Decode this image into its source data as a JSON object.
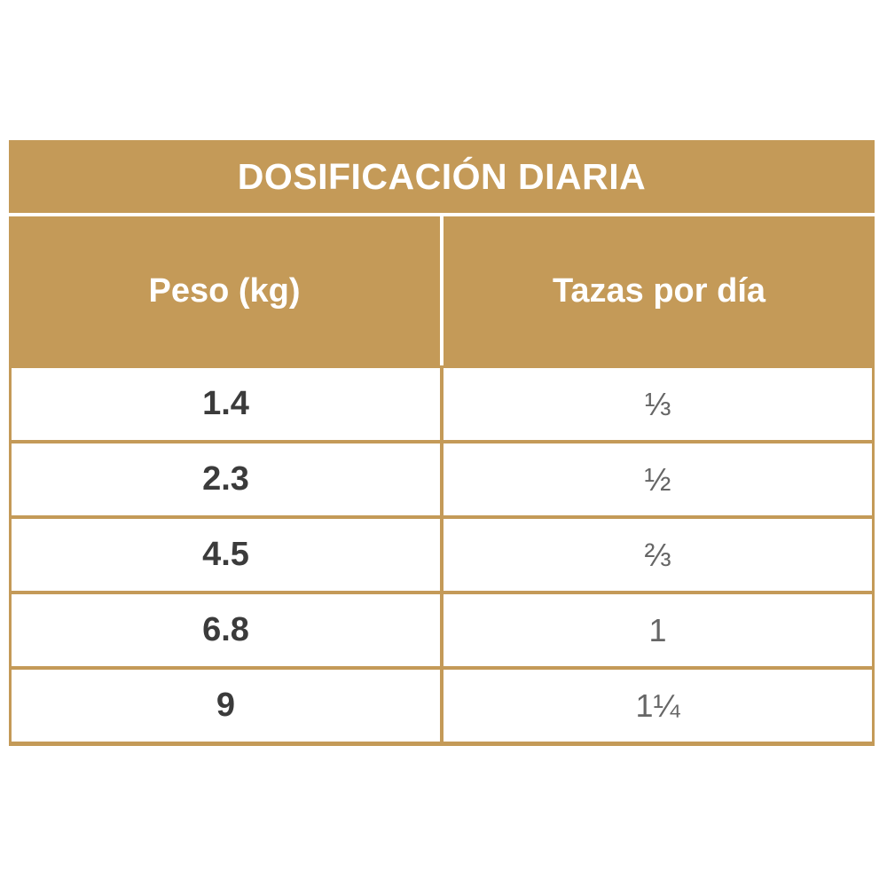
{
  "table": {
    "title": "DOSIFICACIÓN DIARIA",
    "headers": {
      "weight": "Peso (kg)",
      "cups": "Tazas por día"
    },
    "rows": [
      {
        "weight": "1.4",
        "cups": "⅓"
      },
      {
        "weight": "2.3",
        "cups": "½"
      },
      {
        "weight": "4.5",
        "cups": "⅔"
      },
      {
        "weight": "6.8",
        "cups": "1"
      },
      {
        "weight": "9",
        "cups": "1¼"
      }
    ]
  },
  "colors": {
    "header_background": "#c49a58",
    "header_text": "#ffffff",
    "cell_background": "#ffffff",
    "weight_text": "#3b3b3b",
    "cups_text": "#666666"
  }
}
